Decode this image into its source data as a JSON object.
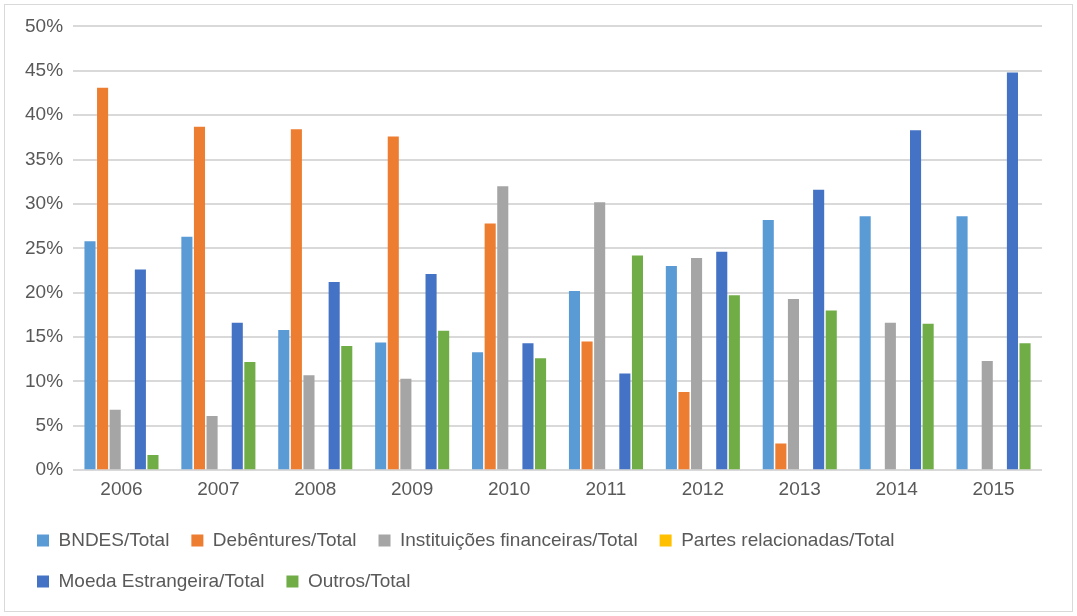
{
  "chart_data": {
    "type": "bar",
    "categories": [
      "2006",
      "2007",
      "2008",
      "2009",
      "2010",
      "2011",
      "2012",
      "2013",
      "2014",
      "2015"
    ],
    "series": [
      {
        "name": "BNDES/Total",
        "color": "#5b9bd5",
        "values": [
          25.8,
          26.3,
          15.8,
          14.4,
          13.3,
          20.2,
          23.0,
          28.2,
          28.6,
          28.6
        ]
      },
      {
        "name": "Debêntures/Total",
        "color": "#ed7d31",
        "values": [
          43.1,
          38.7,
          38.4,
          37.6,
          27.8,
          14.5,
          8.8,
          3.0,
          0,
          0
        ]
      },
      {
        "name": "Instituições financeiras/Total",
        "color": "#a5a5a5",
        "values": [
          6.8,
          6.1,
          10.7,
          10.3,
          32.0,
          30.2,
          23.9,
          19.3,
          16.6,
          12.3
        ]
      },
      {
        "name": "Partes relacionadas/Total",
        "color": "#ffc000",
        "values": [
          0,
          0,
          0,
          0,
          0,
          0,
          0,
          0,
          0,
          0
        ]
      },
      {
        "name": "Moeda Estrangeira/Total",
        "color": "#4472c4",
        "values": [
          22.6,
          16.6,
          21.2,
          22.1,
          14.3,
          10.9,
          24.6,
          31.6,
          38.3,
          44.8
        ]
      },
      {
        "name": "Outros/Total",
        "color": "#70ad47",
        "values": [
          1.7,
          12.2,
          14.0,
          15.7,
          12.6,
          24.2,
          19.7,
          18.0,
          16.5,
          14.3
        ]
      }
    ],
    "ylim": [
      0,
      50
    ],
    "yticks": [
      {
        "value": 0,
        "label": "0%"
      },
      {
        "value": 5,
        "label": "5%"
      },
      {
        "value": 10,
        "label": "10%"
      },
      {
        "value": 15,
        "label": "15%"
      },
      {
        "value": 20,
        "label": "20%"
      },
      {
        "value": 25,
        "label": "25%"
      },
      {
        "value": 30,
        "label": "30%"
      },
      {
        "value": 35,
        "label": "35%"
      },
      {
        "value": 40,
        "label": "40%"
      },
      {
        "value": 45,
        "label": "45%"
      },
      {
        "value": 50,
        "label": "50%"
      }
    ],
    "grid": "y",
    "legend": "bottom"
  }
}
